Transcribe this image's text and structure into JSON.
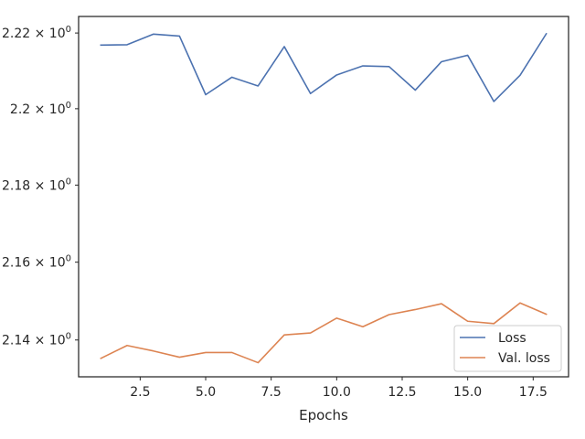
{
  "chart_data": {
    "type": "line",
    "title": "",
    "xlabel": "Epochs",
    "ylabel": "",
    "xlim": [
      0.15,
      18.85
    ],
    "ylim": [
      2.1306,
      2.2244
    ],
    "yscale": "log",
    "grid": false,
    "legend_position": "lower-right",
    "x_ticks": [
      {
        "value": 2.5,
        "label": "2.5"
      },
      {
        "value": 5.0,
        "label": "5.0"
      },
      {
        "value": 7.5,
        "label": "7.5"
      },
      {
        "value": 10.0,
        "label": "10.0"
      },
      {
        "value": 12.5,
        "label": "12.5"
      },
      {
        "value": 15.0,
        "label": "15.0"
      },
      {
        "value": 17.5,
        "label": "17.5"
      }
    ],
    "y_ticks": [
      {
        "value": 2.14,
        "mantissa": "2.14"
      },
      {
        "value": 2.16,
        "mantissa": "2.16"
      },
      {
        "value": 2.18,
        "mantissa": "2.18"
      },
      {
        "value": 2.2,
        "mantissa": "2.2"
      },
      {
        "value": 2.22,
        "mantissa": "2.22"
      }
    ],
    "y_tick_base": "10",
    "y_tick_exponent": "0",
    "y_tick_operator": "×",
    "x": [
      1,
      2,
      3,
      4,
      5,
      6,
      7,
      8,
      9,
      10,
      11,
      12,
      13,
      14,
      15,
      16,
      17,
      18
    ],
    "series": [
      {
        "name": "Loss",
        "color": "#4c72b0",
        "values": [
          2.2168,
          2.2169,
          2.2197,
          2.2192,
          2.2037,
          2.2083,
          2.206,
          2.2164,
          2.204,
          2.2089,
          2.2113,
          2.2111,
          2.2049,
          2.2124,
          2.2141,
          2.2019,
          2.2088,
          2.2198
        ]
      },
      {
        "name": "Val. loss",
        "color": "#dd8452",
        "values": [
          2.1353,
          2.1386,
          2.1372,
          2.1356,
          2.1368,
          2.1368,
          2.1342,
          2.1413,
          2.1418,
          2.1456,
          2.1434,
          2.1465,
          2.1478,
          2.1493,
          2.1448,
          2.1442,
          2.1495,
          2.1466
        ]
      }
    ]
  }
}
